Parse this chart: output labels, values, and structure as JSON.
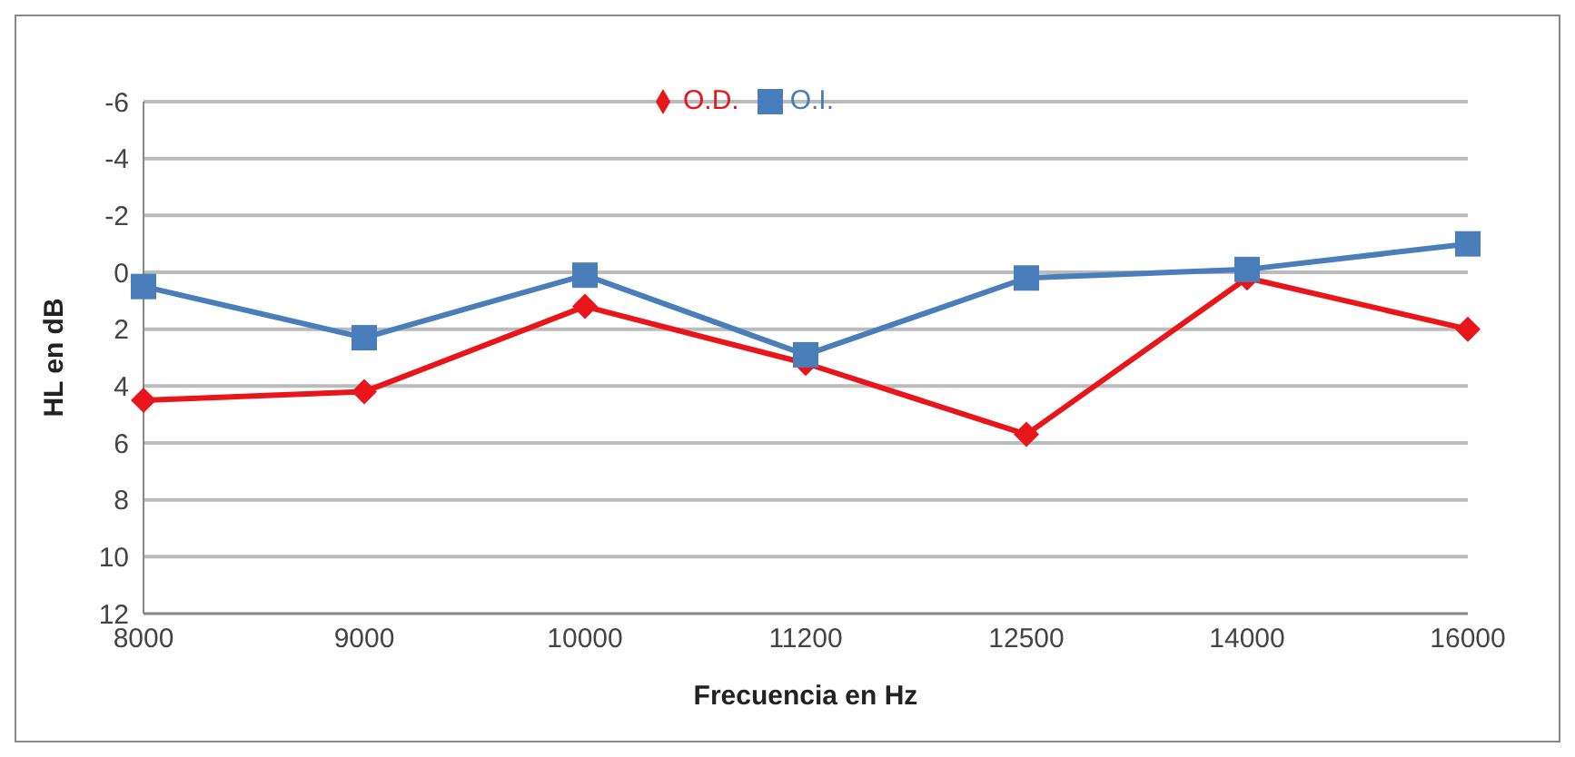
{
  "chart_data": {
    "type": "line",
    "xlabel": "Frecuencia en  Hz",
    "ylabel": "HL en dB",
    "categories": [
      "8000",
      "9000",
      "10000",
      "11200",
      "12500",
      "14000",
      "16000"
    ],
    "series": [
      {
        "name": "O.D.",
        "color": "#e8161b",
        "values": [
          4.5,
          4.2,
          1.2,
          3.2,
          5.7,
          0.2,
          2.0
        ],
        "marker": "diamond"
      },
      {
        "name": "O.I.",
        "color": "#4a7ebb",
        "values": [
          0.5,
          2.3,
          0.1,
          2.9,
          0.2,
          -0.1,
          -1.0
        ],
        "marker": "square"
      }
    ],
    "ylim": [
      12,
      -6
    ],
    "yticks": [
      -6,
      -4,
      -2,
      0,
      2,
      4,
      6,
      8,
      10,
      12
    ],
    "grid": "y",
    "legend": "top"
  }
}
